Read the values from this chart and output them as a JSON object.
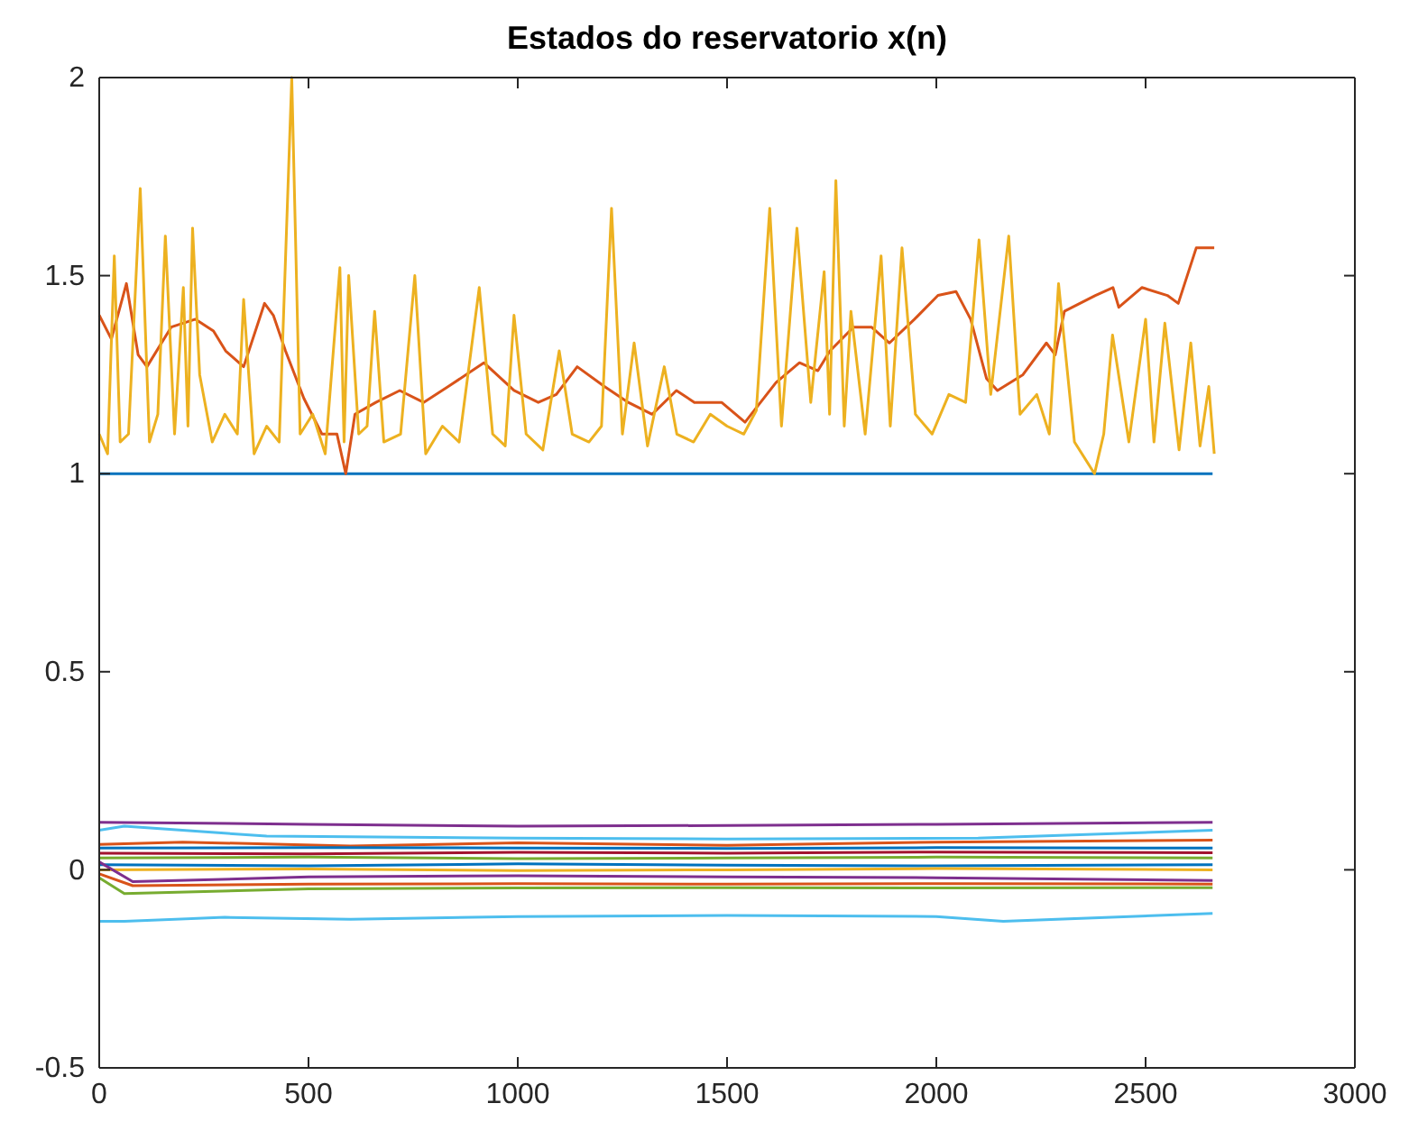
{
  "chart_data": {
    "type": "line",
    "title": "Estados do reservatorio x(n)",
    "xlim": [
      0,
      3000
    ],
    "ylim": [
      -0.5,
      2
    ],
    "xticks": [
      0,
      500,
      1000,
      1500,
      2000,
      2500,
      3000
    ],
    "yticks": [
      -0.5,
      0,
      0.5,
      1,
      1.5,
      2
    ],
    "grid": false,
    "marker": "none",
    "line_style": "solid",
    "series": [
      {
        "color": "#0072bd",
        "x": [
          0,
          2660
        ],
        "values": [
          1,
          1
        ]
      },
      {
        "color": "#d95319",
        "x": [
          0,
          29,
          65,
          93,
          114,
          172,
          230,
          273,
          302,
          345,
          395,
          416,
          445,
          489,
          532,
          568,
          589,
          611,
          661,
          718,
          775,
          834,
          919,
          991,
          1049,
          1092,
          1142,
          1207,
          1264,
          1321,
          1379,
          1422,
          1487,
          1543,
          1617,
          1673,
          1717,
          1746,
          1802,
          1845,
          1888,
          1948,
          2004,
          2047,
          2082,
          2120,
          2146,
          2207,
          2263,
          2284,
          2306,
          2380,
          2422,
          2436,
          2491,
          2552,
          2578,
          2621,
          2664
        ],
        "values": [
          1.4,
          1.34,
          1.48,
          1.3,
          1.27,
          1.37,
          1.39,
          1.36,
          1.31,
          1.27,
          1.43,
          1.4,
          1.31,
          1.19,
          1.1,
          1.1,
          1.0,
          1.15,
          1.18,
          1.21,
          1.18,
          1.22,
          1.28,
          1.21,
          1.18,
          1.2,
          1.27,
          1.22,
          1.18,
          1.15,
          1.21,
          1.18,
          1.18,
          1.13,
          1.23,
          1.28,
          1.26,
          1.31,
          1.37,
          1.37,
          1.33,
          1.39,
          1.45,
          1.46,
          1.39,
          1.24,
          1.21,
          1.25,
          1.33,
          1.3,
          1.41,
          1.45,
          1.47,
          1.42,
          1.47,
          1.45,
          1.43,
          1.57,
          1.57
        ]
      },
      {
        "color": "#edb120",
        "x": [
          0,
          20,
          36,
          50,
          70,
          98,
          120,
          140,
          158,
          180,
          201,
          212,
          223,
          240,
          270,
          300,
          330,
          345,
          370,
          400,
          430,
          460,
          480,
          510,
          540,
          575,
          585,
          596,
          620,
          640,
          658,
          680,
          720,
          754,
          780,
          820,
          860,
          908,
          940,
          970,
          991,
          1020,
          1060,
          1099,
          1130,
          1170,
          1200,
          1224,
          1250,
          1278,
          1310,
          1350,
          1380,
          1420,
          1460,
          1500,
          1540,
          1570,
          1602,
          1630,
          1667,
          1700,
          1732,
          1745,
          1760,
          1780,
          1796,
          1830,
          1868,
          1890,
          1918,
          1950,
          1990,
          2030,
          2070,
          2102,
          2130,
          2173,
          2200,
          2240,
          2270,
          2292,
          2330,
          2378,
          2400,
          2421,
          2460,
          2500,
          2520,
          2546,
          2580,
          2608,
          2630,
          2651,
          2664
        ],
        "values": [
          1.1,
          1.05,
          1.55,
          1.08,
          1.1,
          1.72,
          1.08,
          1.15,
          1.6,
          1.1,
          1.47,
          1.12,
          1.62,
          1.25,
          1.08,
          1.15,
          1.1,
          1.44,
          1.05,
          1.12,
          1.08,
          2.0,
          1.1,
          1.15,
          1.05,
          1.52,
          1.08,
          1.5,
          1.1,
          1.12,
          1.41,
          1.08,
          1.1,
          1.5,
          1.05,
          1.12,
          1.08,
          1.47,
          1.1,
          1.07,
          1.4,
          1.1,
          1.06,
          1.31,
          1.1,
          1.08,
          1.12,
          1.67,
          1.1,
          1.33,
          1.07,
          1.27,
          1.1,
          1.08,
          1.15,
          1.12,
          1.1,
          1.16,
          1.67,
          1.12,
          1.62,
          1.18,
          1.51,
          1.15,
          1.74,
          1.12,
          1.41,
          1.1,
          1.55,
          1.12,
          1.57,
          1.15,
          1.1,
          1.2,
          1.18,
          1.59,
          1.2,
          1.6,
          1.15,
          1.2,
          1.1,
          1.48,
          1.08,
          1.0,
          1.1,
          1.35,
          1.08,
          1.39,
          1.08,
          1.38,
          1.06,
          1.33,
          1.07,
          1.22,
          1.05
        ]
      },
      {
        "color": "#7e2f8e",
        "x": [
          0,
          500,
          1000,
          1500,
          2000,
          2660
        ],
        "values": [
          0.12,
          0.115,
          0.11,
          0.112,
          0.115,
          0.12
        ]
      },
      {
        "color": "#4dbeee",
        "x": [
          0,
          60,
          400,
          1000,
          1500,
          2100,
          2660
        ],
        "values": [
          0.1,
          0.11,
          0.085,
          0.08,
          0.078,
          0.08,
          0.1
        ]
      },
      {
        "color": "#d95319",
        "x": [
          0,
          200,
          600,
          1000,
          1500,
          2000,
          2660
        ],
        "values": [
          0.064,
          0.07,
          0.06,
          0.068,
          0.062,
          0.07,
          0.075
        ]
      },
      {
        "color": "#0072bd",
        "x": [
          0,
          500,
          1000,
          1500,
          2000,
          2660
        ],
        "values": [
          0.055,
          0.056,
          0.055,
          0.054,
          0.056,
          0.055
        ]
      },
      {
        "color": "#a2142f",
        "x": [
          0,
          500,
          1000,
          1500,
          2000,
          2660
        ],
        "values": [
          0.042,
          0.04,
          0.044,
          0.042,
          0.045,
          0.043
        ]
      },
      {
        "color": "#77ac30",
        "x": [
          0,
          500,
          1000,
          1500,
          2000,
          2660
        ],
        "values": [
          0.03,
          0.032,
          0.028,
          0.03,
          0.032,
          0.03
        ]
      },
      {
        "color": "#0072bd",
        "x": [
          0,
          500,
          1000,
          1500,
          2000,
          2660
        ],
        "values": [
          0.013,
          0.01,
          0.015,
          0.012,
          0.01,
          0.013
        ]
      },
      {
        "color": "#edb120",
        "x": [
          0,
          500,
          1000,
          1500,
          2000,
          2660
        ],
        "values": [
          0.0,
          0.002,
          -0.002,
          0.0,
          0.003,
          0.0
        ]
      },
      {
        "color": "#7e2f8e",
        "x": [
          0,
          80,
          500,
          1000,
          1500,
          2000,
          2660
        ],
        "values": [
          0.02,
          -0.03,
          -0.018,
          -0.015,
          -0.018,
          -0.02,
          -0.027
        ]
      },
      {
        "color": "#d95319",
        "x": [
          0,
          80,
          500,
          1000,
          1500,
          2000,
          2660
        ],
        "values": [
          -0.01,
          -0.04,
          -0.036,
          -0.035,
          -0.036,
          -0.035,
          -0.036
        ]
      },
      {
        "color": "#77ac30",
        "x": [
          0,
          60,
          500,
          1000,
          1500,
          2000,
          2660
        ],
        "values": [
          -0.02,
          -0.06,
          -0.048,
          -0.046,
          -0.045,
          -0.046,
          -0.045
        ]
      },
      {
        "color": "#4dbeee",
        "x": [
          0,
          60,
          300,
          600,
          1000,
          1500,
          2000,
          2160,
          2660
        ],
        "values": [
          -0.13,
          -0.13,
          -0.12,
          -0.125,
          -0.118,
          -0.115,
          -0.118,
          -0.13,
          -0.11
        ]
      }
    ]
  }
}
